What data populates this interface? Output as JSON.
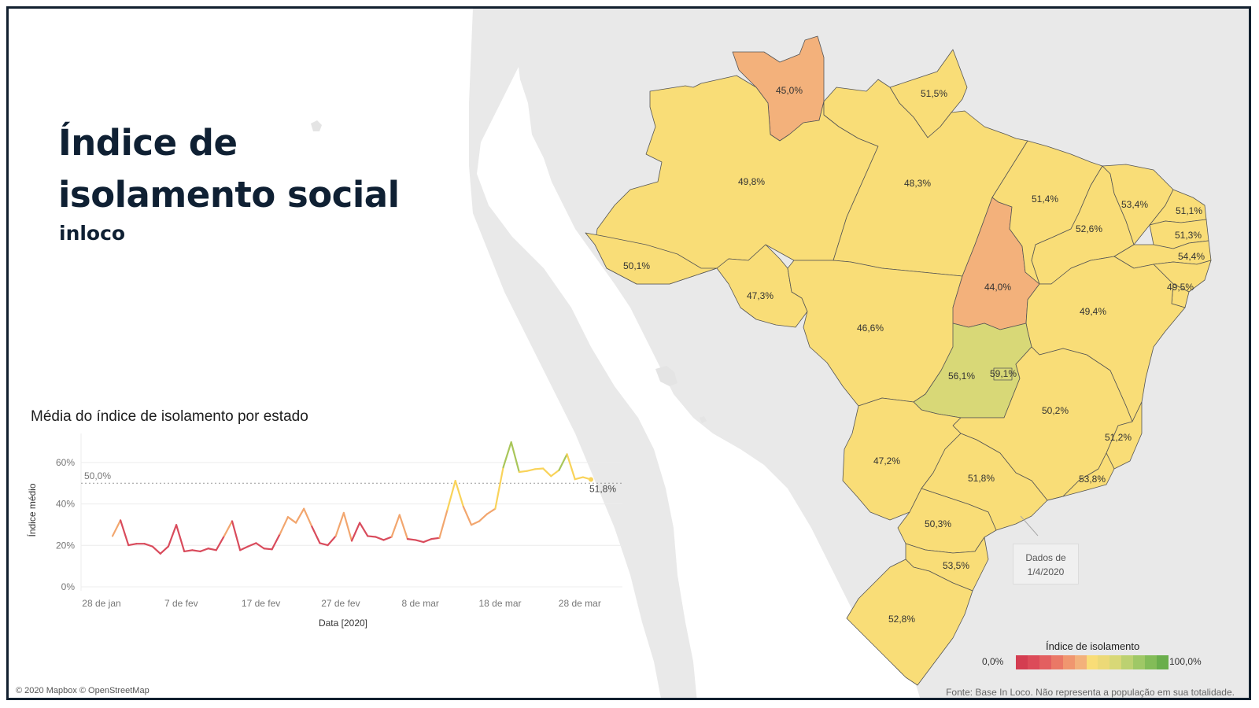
{
  "header": {
    "title_line1": "Índice de",
    "title_line2": "isolamento social",
    "brand": "inloco"
  },
  "map": {
    "states": [
      {
        "id": "RR",
        "value": "45,0%",
        "color": "#f3b17b"
      },
      {
        "id": "AP",
        "value": "51,5%",
        "color": "#f9dd77"
      },
      {
        "id": "AM",
        "value": "49,8%",
        "color": "#f9dd77"
      },
      {
        "id": "PA",
        "value": "48,3%",
        "color": "#f9dd77"
      },
      {
        "id": "AC",
        "value": "50,1%",
        "color": "#f9dd77"
      },
      {
        "id": "RO",
        "value": "47,3%",
        "color": "#f9dd77"
      },
      {
        "id": "MT",
        "value": "46,6%",
        "color": "#f9dd77"
      },
      {
        "id": "TO",
        "value": "44,0%",
        "color": "#f3b17b"
      },
      {
        "id": "MA",
        "value": "51,4%",
        "color": "#f9dd77"
      },
      {
        "id": "PI",
        "value": "52,6%",
        "color": "#f9dd77"
      },
      {
        "id": "CE",
        "value": "53,4%",
        "color": "#f9dd77"
      },
      {
        "id": "RN",
        "value": "51,1%",
        "color": "#f9dd77"
      },
      {
        "id": "PB",
        "value": "51,3%",
        "color": "#f9dd77"
      },
      {
        "id": "PE",
        "value": "54,4%",
        "color": "#f9dd77"
      },
      {
        "id": "AL",
        "value": "49,5%",
        "color": "#f9dd77"
      },
      {
        "id": "BA",
        "value": "49,4%",
        "color": "#f9dd77"
      },
      {
        "id": "GO",
        "value": "56,1%",
        "color": "#d8d877"
      },
      {
        "id": "DF",
        "value": "59,1%",
        "color": "#d8d877"
      },
      {
        "id": "MG",
        "value": "50,2%",
        "color": "#f9dd77"
      },
      {
        "id": "ES",
        "value": "51,2%",
        "color": "#f9dd77"
      },
      {
        "id": "MS",
        "value": "47,2%",
        "color": "#f9dd77"
      },
      {
        "id": "SP",
        "value": "51,8%",
        "color": "#f9dd77"
      },
      {
        "id": "RJ",
        "value": "53,8%",
        "color": "#f9dd77"
      },
      {
        "id": "PR",
        "value": "50,3%",
        "color": "#f9dd77"
      },
      {
        "id": "SC",
        "value": "53,5%",
        "color": "#f9dd77"
      },
      {
        "id": "RS",
        "value": "52,8%",
        "color": "#f9dd77"
      }
    ],
    "date_note_line1": "Dados de",
    "date_note_line2": "1/4/2020",
    "attribution": "© 2020 Mapbox © OpenStreetMap",
    "source": "Fonte: Base In Loco. Não representa a população em sua totalidade."
  },
  "legend": {
    "title": "Índice de isolamento",
    "min_label": "0,0%",
    "max_label": "100,0%",
    "colors": [
      "#d43d51",
      "#dc4b59",
      "#e35f60",
      "#ea7866",
      "#f0966f",
      "#f3b17b",
      "#f9dd77",
      "#ecd977",
      "#d8d877",
      "#bcd171",
      "#9fc866",
      "#83bc58",
      "#6aae4c"
    ]
  },
  "chart_data": {
    "type": "line",
    "title": "Média do índice de isolamento por estado",
    "xlabel": "Data [2020]",
    "ylabel": "Índice médio",
    "ylim": [
      0,
      74
    ],
    "yticks": [
      "0%",
      "20%",
      "40%",
      "60%"
    ],
    "xtick_labels": [
      "28 de jan",
      "7 de fev",
      "17 de fev",
      "27 de fev",
      "8 de mar",
      "18 de mar",
      "28 de mar"
    ],
    "reference_line": {
      "value": 50,
      "label": "50,0%"
    },
    "last_label": "51,8%",
    "start_date": "2020-01-29",
    "values": [
      24.5,
      32.1,
      20.1,
      20.8,
      20.8,
      19.5,
      16.0,
      19.5,
      29.9,
      17.1,
      17.7,
      17.1,
      18.5,
      17.7,
      24.5,
      31.7,
      17.7,
      19.5,
      21.1,
      18.5,
      18.1,
      25.5,
      33.7,
      30.9,
      37.7,
      29.1,
      21.1,
      20.1,
      24.5,
      35.7,
      22.2,
      30.9,
      24.5,
      24.1,
      22.6,
      24.1,
      34.7,
      23.1,
      22.6,
      21.6,
      23.1,
      23.6,
      37.2,
      51.2,
      38.7,
      29.9,
      31.7,
      35.2,
      37.7,
      57.6,
      69.8,
      55.4,
      55.9,
      56.8,
      57.1,
      53.4,
      56.3,
      64.0,
      51.9,
      52.9,
      51.8
    ],
    "grid": true,
    "colors": {
      "low": "#d94b5c",
      "mid": "#f2a66e",
      "high_yellow": "#f9d35a",
      "high_green": "#a9c65a",
      "reference": "#999999"
    }
  }
}
